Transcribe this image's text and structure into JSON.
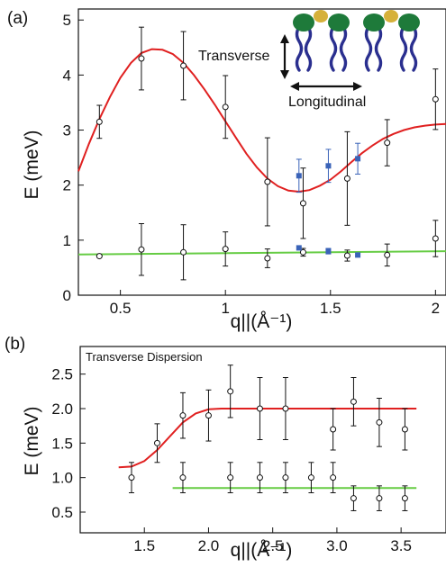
{
  "chart_data": [
    {
      "type": "scatter",
      "panel_label": "(a)",
      "xlabel": "q||(Å⁻¹)",
      "ylabel": "E (meV)",
      "xlim": [
        0.3,
        2.05
      ],
      "ylim": [
        0,
        5.2
      ],
      "xticks": [
        "0.5",
        "1",
        "1.5",
        "2"
      ],
      "yticks": [
        "0",
        "1",
        "2",
        "3",
        "4",
        "5"
      ],
      "xtick_values": [
        0.5,
        1,
        1.5,
        2
      ],
      "ytick_values": [
        0,
        1,
        2,
        3,
        4,
        5
      ],
      "inset_labels": {
        "transverse": "Transverse",
        "longitudinal": "Longitudinal"
      },
      "series": [
        {
          "marker": "open-circle",
          "color": "#111111",
          "points": [
            {
              "x": 0.4,
              "y": 3.15,
              "err": 0.3
            },
            {
              "x": 0.6,
              "y": 4.3,
              "err": 0.57
            },
            {
              "x": 0.8,
              "y": 4.17,
              "err": 0.62
            },
            {
              "x": 1.0,
              "y": 3.42,
              "err": 0.57
            },
            {
              "x": 1.2,
              "y": 2.06,
              "err": 0.8
            },
            {
              "x": 1.37,
              "y": 1.67,
              "err": 0.64
            },
            {
              "x": 1.58,
              "y": 2.12,
              "err": 0.85
            },
            {
              "x": 1.77,
              "y": 2.77,
              "err": 0.42
            },
            {
              "x": 2.0,
              "y": 3.56,
              "err": 0.55
            }
          ]
        },
        {
          "marker": "open-circle",
          "color": "#111111",
          "points": [
            {
              "x": 0.4,
              "y": 0.71,
              "err": 0
            },
            {
              "x": 0.6,
              "y": 0.83,
              "err": 0.47
            },
            {
              "x": 0.8,
              "y": 0.78,
              "err": 0.5
            },
            {
              "x": 1.0,
              "y": 0.84,
              "err": 0.31
            },
            {
              "x": 1.2,
              "y": 0.67,
              "err": 0.17
            },
            {
              "x": 1.37,
              "y": 0.78,
              "err": 0.07
            },
            {
              "x": 1.58,
              "y": 0.72,
              "err": 0.1
            },
            {
              "x": 1.77,
              "y": 0.73,
              "err": 0.2
            },
            {
              "x": 2.0,
              "y": 1.03,
              "err": 0.33
            }
          ]
        },
        {
          "marker": "filled-square",
          "color": "#3a63b8",
          "points": [
            {
              "x": 1.35,
              "y": 2.17,
              "err": 0.3
            },
            {
              "x": 1.49,
              "y": 2.35,
              "err": 0.3
            },
            {
              "x": 1.63,
              "y": 2.48,
              "err": 0.28
            }
          ]
        },
        {
          "marker": "filled-square",
          "color": "#3a63b8",
          "points": [
            {
              "x": 1.35,
              "y": 0.86,
              "err": 0
            },
            {
              "x": 1.49,
              "y": 0.8,
              "err": 0.05
            },
            {
              "x": 1.63,
              "y": 0.73,
              "err": 0
            }
          ]
        }
      ],
      "fits": [
        {
          "color": "#e02020",
          "points": [
            [
              0.3,
              2.25
            ],
            [
              0.35,
              2.75
            ],
            [
              0.4,
              3.2
            ],
            [
              0.45,
              3.6
            ],
            [
              0.5,
              3.95
            ],
            [
              0.55,
              4.22
            ],
            [
              0.6,
              4.4
            ],
            [
              0.65,
              4.47
            ],
            [
              0.7,
              4.46
            ],
            [
              0.75,
              4.38
            ],
            [
              0.8,
              4.22
            ],
            [
              0.85,
              4.0
            ],
            [
              0.9,
              3.74
            ],
            [
              0.95,
              3.46
            ],
            [
              1.0,
              3.16
            ],
            [
              1.05,
              2.86
            ],
            [
              1.1,
              2.57
            ],
            [
              1.15,
              2.32
            ],
            [
              1.2,
              2.12
            ],
            [
              1.25,
              1.98
            ],
            [
              1.3,
              1.9
            ],
            [
              1.35,
              1.88
            ],
            [
              1.4,
              1.91
            ],
            [
              1.45,
              1.99
            ],
            [
              1.5,
              2.1
            ],
            [
              1.55,
              2.25
            ],
            [
              1.6,
              2.42
            ],
            [
              1.65,
              2.58
            ],
            [
              1.7,
              2.72
            ],
            [
              1.75,
              2.84
            ],
            [
              1.8,
              2.93
            ],
            [
              1.85,
              3.0
            ],
            [
              1.9,
              3.05
            ],
            [
              1.95,
              3.08
            ],
            [
              2.0,
              3.1
            ],
            [
              2.05,
              3.11
            ]
          ]
        },
        {
          "color": "#66cc44",
          "points": [
            [
              0.3,
              0.74
            ],
            [
              2.05,
              0.8
            ]
          ]
        }
      ]
    },
    {
      "type": "scatter",
      "panel_label": "(b)",
      "annotation": "Transverse Dispersion",
      "xlabel": "q||(Å⁻¹)",
      "ylabel": "E (meV)",
      "xlim": [
        1.0,
        3.85
      ],
      "ylim": [
        0.2,
        2.9
      ],
      "xticks": [
        "1.5",
        "2.0",
        "2.5",
        "3.0",
        "3.5"
      ],
      "yticks": [
        "0.5",
        "1.0",
        "1.5",
        "2.0",
        "2.5"
      ],
      "xtick_values": [
        1.5,
        2.0,
        2.5,
        3.0,
        3.5
      ],
      "ytick_values": [
        0.5,
        1.0,
        1.5,
        2.0,
        2.5
      ],
      "series": [
        {
          "marker": "open-circle",
          "color": "#111111",
          "points": [
            {
              "x": 1.4,
              "y": 1.0,
              "err": 0.22
            },
            {
              "x": 1.6,
              "y": 1.5,
              "err": 0.28
            },
            {
              "x": 1.8,
              "y": 1.9,
              "err": 0.33
            },
            {
              "x": 2.0,
              "y": 1.9,
              "err": 0.37
            },
            {
              "x": 2.17,
              "y": 2.25,
              "err": 0.38
            },
            {
              "x": 2.4,
              "y": 2.0,
              "err": 0.45
            },
            {
              "x": 2.6,
              "y": 2.0,
              "err": 0.45
            },
            {
              "x": 2.97,
              "y": 1.7,
              "err": 0.3
            },
            {
              "x": 3.13,
              "y": 2.1,
              "err": 0.35
            },
            {
              "x": 3.33,
              "y": 1.8,
              "err": 0.35
            },
            {
              "x": 3.53,
              "y": 1.7,
              "err": 0.3
            }
          ]
        },
        {
          "marker": "open-circle",
          "color": "#111111",
          "points": [
            {
              "x": 1.8,
              "y": 1.0,
              "err": 0.22
            },
            {
              "x": 2.17,
              "y": 1.0,
              "err": 0.22
            },
            {
              "x": 2.4,
              "y": 1.0,
              "err": 0.22
            },
            {
              "x": 2.6,
              "y": 1.0,
              "err": 0.22
            },
            {
              "x": 2.8,
              "y": 1.0,
              "err": 0.22
            },
            {
              "x": 2.97,
              "y": 1.0,
              "err": 0.22
            },
            {
              "x": 3.13,
              "y": 0.7,
              "err": 0.18
            },
            {
              "x": 3.33,
              "y": 0.7,
              "err": 0.18
            },
            {
              "x": 3.53,
              "y": 0.7,
              "err": 0.18
            }
          ]
        }
      ],
      "fits": [
        {
          "color": "#e02020",
          "points": [
            [
              1.3,
              1.15
            ],
            [
              1.4,
              1.16
            ],
            [
              1.5,
              1.24
            ],
            [
              1.6,
              1.4
            ],
            [
              1.7,
              1.6
            ],
            [
              1.8,
              1.8
            ],
            [
              1.9,
              1.93
            ],
            [
              2.0,
              1.99
            ],
            [
              2.1,
              2.0
            ],
            [
              2.5,
              2.0
            ],
            [
              3.0,
              2.0
            ],
            [
              3.62,
              2.0
            ]
          ]
        },
        {
          "color": "#66cc44",
          "points": [
            [
              1.72,
              0.85
            ],
            [
              3.62,
              0.85
            ]
          ]
        }
      ]
    }
  ]
}
